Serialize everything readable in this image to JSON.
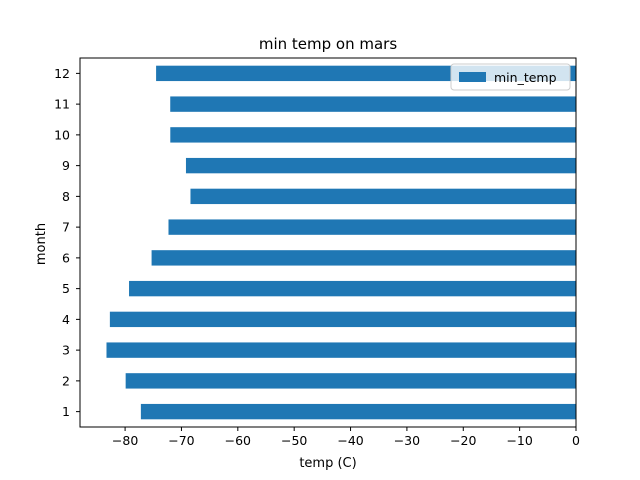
{
  "chart_data": {
    "type": "bar",
    "orientation": "horizontal",
    "title": "min temp on mars",
    "xlabel": "temp (C)",
    "ylabel": "month",
    "categories": [
      "1",
      "2",
      "3",
      "4",
      "5",
      "6",
      "7",
      "8",
      "9",
      "10",
      "11",
      "12"
    ],
    "series": [
      {
        "name": "min_temp",
        "color": "#1f77b4",
        "values": [
          -77.2,
          -79.9,
          -83.3,
          -82.7,
          -79.3,
          -75.3,
          -72.3,
          -68.4,
          -69.2,
          -71.98,
          -71.99,
          -74.5
        ]
      }
    ],
    "xlim": [
      -88,
      0
    ],
    "xticks": [
      -80,
      -70,
      -60,
      -50,
      -40,
      -30,
      -20,
      -10,
      0
    ],
    "xtick_labels": [
      "−80",
      "−70",
      "−60",
      "−50",
      "−40",
      "−30",
      "−20",
      "−10",
      "0"
    ],
    "grid": false,
    "legend_position": "top-right"
  }
}
